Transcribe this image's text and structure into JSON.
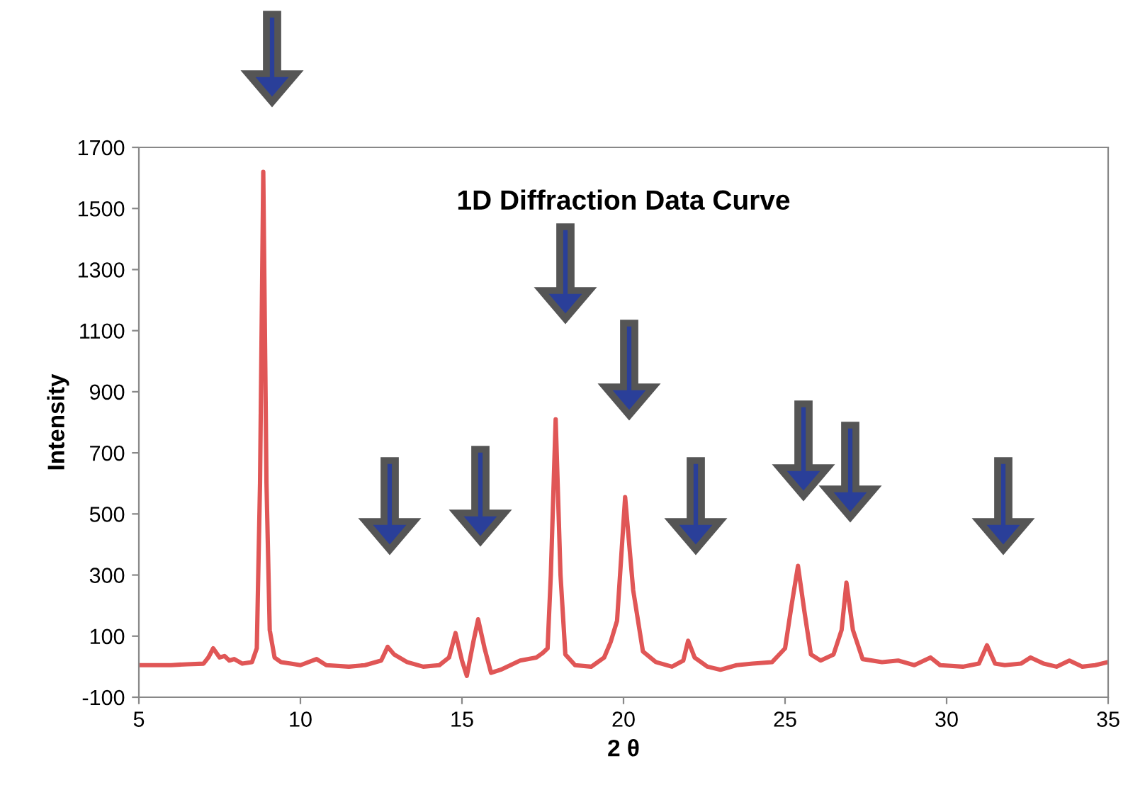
{
  "chart_data": {
    "type": "line",
    "title": "1D Diffraction Data Curve",
    "xlabel": "2 θ",
    "ylabel": "Intensity",
    "xlim": [
      5,
      35
    ],
    "xticks": [
      5,
      10,
      15,
      20,
      25,
      30,
      35
    ],
    "ylim": [
      -100,
      1700
    ],
    "yticks": [
      -100,
      100,
      300,
      500,
      700,
      900,
      1100,
      1300,
      1500,
      1700
    ],
    "grid": false,
    "marker": "none",
    "line_style": "solid",
    "series": [
      {
        "color": "#e05656",
        "x": [
          5,
          6,
          6.5,
          7,
          7.15,
          7.3,
          7.5,
          7.65,
          7.8,
          7.95,
          8.2,
          8.5,
          8.65,
          8.75,
          8.85,
          8.95,
          9.05,
          9.2,
          9.4,
          9.7,
          10,
          10.5,
          10.8,
          11.5,
          12,
          12.5,
          12.7,
          12.9,
          13.3,
          13.8,
          14.3,
          14.6,
          14.8,
          15.0,
          15.15,
          15.35,
          15.5,
          15.7,
          15.9,
          16.2,
          16.8,
          17.3,
          17.5,
          17.65,
          17.75,
          17.9,
          18.05,
          18.2,
          18.5,
          19,
          19.4,
          19.6,
          19.8,
          20.05,
          20.3,
          20.6,
          21,
          21.5,
          21.85,
          22.0,
          22.2,
          22.6,
          23,
          23.5,
          24,
          24.6,
          25.0,
          25.2,
          25.4,
          25.6,
          25.8,
          26.1,
          26.5,
          26.75,
          26.9,
          27.1,
          27.4,
          28,
          28.5,
          29,
          29.5,
          29.8,
          30.5,
          31,
          31.25,
          31.5,
          31.8,
          32.3,
          32.6,
          33,
          33.4,
          33.8,
          34.2,
          34.6,
          35
        ],
        "values": [
          5,
          5,
          8,
          10,
          30,
          60,
          30,
          35,
          20,
          25,
          10,
          15,
          60,
          600,
          1620,
          600,
          120,
          30,
          15,
          10,
          5,
          25,
          5,
          0,
          5,
          20,
          65,
          40,
          15,
          0,
          5,
          30,
          110,
          20,
          -30,
          80,
          155,
          60,
          -20,
          -10,
          20,
          30,
          45,
          60,
          300,
          810,
          300,
          40,
          5,
          0,
          30,
          80,
          150,
          555,
          250,
          50,
          15,
          0,
          20,
          85,
          30,
          0,
          -10,
          5,
          10,
          15,
          60,
          200,
          330,
          180,
          40,
          20,
          40,
          120,
          275,
          120,
          25,
          15,
          20,
          5,
          30,
          5,
          0,
          10,
          70,
          10,
          5,
          10,
          30,
          10,
          0,
          20,
          0,
          5,
          15
        ]
      }
    ]
  }
}
